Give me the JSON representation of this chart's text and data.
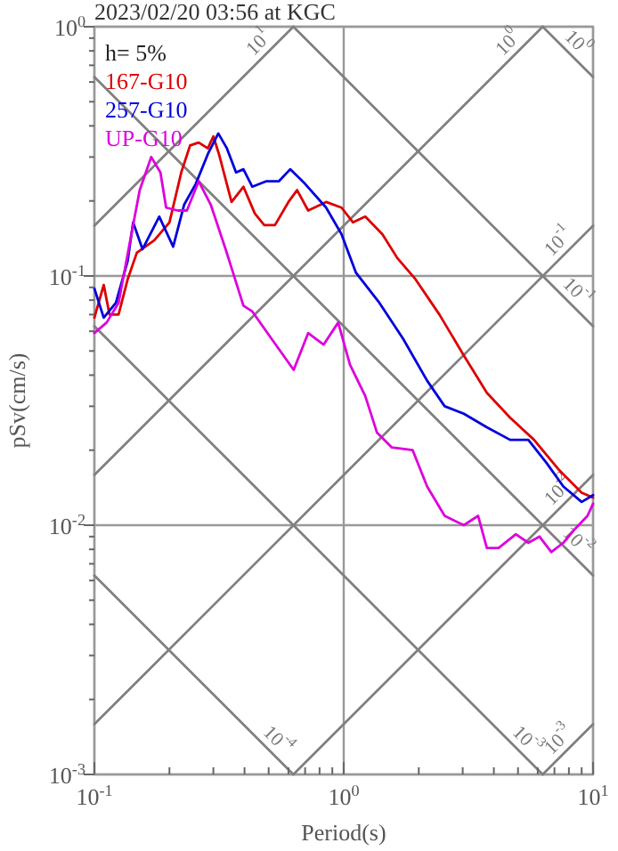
{
  "chart_data": {
    "type": "line",
    "title": "2023/02/20 03:56 at KGC",
    "xlabel": "Period(s)",
    "ylabel": "pSv(cm/s)",
    "log": "xy",
    "grid": true,
    "legend": "top left",
    "line_style": "solid",
    "marker": "none",
    "xlim": [
      0.1,
      10
    ],
    "ylim": [
      0.001,
      1
    ],
    "xticks": [
      {
        "value": 0.1,
        "label": "10$^{-1}$"
      },
      {
        "value": 0.2,
        "label": null
      },
      {
        "value": 0.3,
        "label": null
      },
      {
        "value": 0.4,
        "label": null
      },
      {
        "value": 0.5,
        "label": null
      },
      {
        "value": 0.6,
        "label": null
      },
      {
        "value": 0.7,
        "label": null
      },
      {
        "value": 0.8,
        "label": null
      },
      {
        "value": 0.9,
        "label": null
      },
      {
        "value": 1,
        "label": "10$^{0}$"
      },
      {
        "value": 2,
        "label": null
      },
      {
        "value": 3,
        "label": null
      },
      {
        "value": 4,
        "label": null
      },
      {
        "value": 5,
        "label": null
      },
      {
        "value": 6,
        "label": null
      },
      {
        "value": 7,
        "label": null
      },
      {
        "value": 8,
        "label": null
      },
      {
        "value": 9,
        "label": null
      },
      {
        "value": 10,
        "label": "10$^{1}$"
      }
    ],
    "yticks": [
      {
        "value": 0.001,
        "label": "10$^{-3}$"
      },
      {
        "value": 0.002,
        "label": null
      },
      {
        "value": 0.003,
        "label": null
      },
      {
        "value": 0.004,
        "label": null
      },
      {
        "value": 0.005,
        "label": null
      },
      {
        "value": 0.006,
        "label": null
      },
      {
        "value": 0.007,
        "label": null
      },
      {
        "value": 0.008,
        "label": null
      },
      {
        "value": 0.009,
        "label": null
      },
      {
        "value": 0.01,
        "label": "10$^{-2}$"
      },
      {
        "value": 0.02,
        "label": null
      },
      {
        "value": 0.03,
        "label": null
      },
      {
        "value": 0.04,
        "label": null
      },
      {
        "value": 0.05,
        "label": null
      },
      {
        "value": 0.06,
        "label": null
      },
      {
        "value": 0.07,
        "label": null
      },
      {
        "value": 0.08,
        "label": null
      },
      {
        "value": 0.09,
        "label": null
      },
      {
        "value": 0.1,
        "label": "10$^{-1}$"
      },
      {
        "value": 0.2,
        "label": null
      },
      {
        "value": 0.3,
        "label": null
      },
      {
        "value": 0.4,
        "label": null
      },
      {
        "value": 0.5,
        "label": null
      },
      {
        "value": 0.6,
        "label": null
      },
      {
        "value": 0.7,
        "label": null
      },
      {
        "value": 0.8,
        "label": null
      },
      {
        "value": 0.9,
        "label": null
      },
      {
        "value": 1,
        "label": "10$^{0}$"
      }
    ],
    "series": [
      {
        "type": "line",
        "name": "10$^{1}$",
        "color": "#808080",
        "x": [
          0.1,
          0.628
        ],
        "values": [
          0.159,
          1
        ]
      },
      {
        "type": "line",
        "name": "10$^{0}$",
        "color": "#808080",
        "x": [
          0.1,
          6.28
        ],
        "values": [
          0.0159,
          1
        ]
      },
      {
        "type": "line",
        "name": "10$^{-1}$",
        "color": "#808080",
        "x": [
          0.1,
          10
        ],
        "values": [
          0.00159,
          0.159
        ]
      },
      {
        "type": "line",
        "name": "10$^{-2}$",
        "color": "#808080",
        "x": [
          0.628,
          10
        ],
        "values": [
          0.001,
          0.0159
        ]
      },
      {
        "type": "line",
        "name": "10$^{-3}$",
        "color": "#808080",
        "x": [
          6.28,
          10
        ],
        "values": [
          0.001,
          0.00159
        ]
      },
      {
        "type": "line",
        "name": "10$^{0}$",
        "color": "#808080",
        "x": [
          6.28,
          10
        ],
        "values": [
          1,
          0.628
        ]
      },
      {
        "type": "line",
        "name": "10$^{-1}$",
        "color": "#808080",
        "x": [
          0.628,
          10
        ],
        "values": [
          1,
          0.0628
        ]
      },
      {
        "type": "line",
        "name": "10$^{-2}$",
        "color": "#808080",
        "x": [
          0.1,
          10
        ],
        "values": [
          0.628,
          0.00628
        ]
      },
      {
        "type": "line",
        "name": "10$^{-3}$",
        "color": "#808080",
        "x": [
          0.1,
          6.28
        ],
        "values": [
          0.0628,
          0.001
        ]
      },
      {
        "type": "line",
        "name": "10$^{-4}$",
        "color": "#808080",
        "x": [
          0.1,
          0.628
        ],
        "values": [
          0.00628,
          0.001
        ]
      },
      {
        "name": "167-G10",
        "color": "#dd0000",
        "x": [
          0.1,
          0.109,
          0.115,
          0.125,
          0.136,
          0.148,
          0.174,
          0.2,
          0.223,
          0.242,
          0.262,
          0.285,
          0.3,
          0.316,
          0.355,
          0.396,
          0.44,
          0.48,
          0.53,
          0.6,
          0.65,
          0.72,
          0.85,
          0.98,
          1.09,
          1.22,
          1.43,
          1.64,
          1.94,
          2.42,
          3.03,
          3.75,
          4.65,
          5.8,
          7.25,
          9.0,
          10
        ],
        "values": [
          0.068,
          0.092,
          0.07,
          0.07,
          0.097,
          0.124,
          0.139,
          0.164,
          0.26,
          0.334,
          0.343,
          0.325,
          0.363,
          0.308,
          0.198,
          0.228,
          0.178,
          0.16,
          0.16,
          0.198,
          0.221,
          0.183,
          0.198,
          0.188,
          0.164,
          0.173,
          0.147,
          0.118,
          0.097,
          0.07,
          0.048,
          0.034,
          0.027,
          0.022,
          0.0168,
          0.0135,
          0.0129
        ]
      },
      {
        "name": "257-G10",
        "color": "#0000dd",
        "x": [
          0.1,
          0.109,
          0.122,
          0.136,
          0.143,
          0.156,
          0.182,
          0.207,
          0.229,
          0.255,
          0.285,
          0.314,
          0.34,
          0.37,
          0.396,
          0.43,
          0.49,
          0.55,
          0.61,
          0.7,
          0.85,
          0.98,
          1.12,
          1.39,
          1.73,
          2.16,
          2.54,
          3.03,
          3.75,
          4.65,
          5.5,
          6.5,
          7.6,
          9.0,
          10
        ],
        "values": [
          0.089,
          0.068,
          0.078,
          0.115,
          0.164,
          0.128,
          0.173,
          0.131,
          0.193,
          0.234,
          0.308,
          0.373,
          0.325,
          0.26,
          0.268,
          0.228,
          0.24,
          0.24,
          0.268,
          0.234,
          0.188,
          0.147,
          0.103,
          0.078,
          0.056,
          0.038,
          0.03,
          0.028,
          0.0247,
          0.022,
          0.022,
          0.0178,
          0.0143,
          0.0124,
          0.0132
        ]
      },
      {
        "name": "UP-G10",
        "color": "#dd00dd",
        "x": [
          0.1,
          0.112,
          0.125,
          0.14,
          0.152,
          0.169,
          0.184,
          0.194,
          0.216,
          0.235,
          0.262,
          0.293,
          0.336,
          0.396,
          0.43,
          0.52,
          0.63,
          0.72,
          0.83,
          0.95,
          1.06,
          1.22,
          1.36,
          1.56,
          1.89,
          2.16,
          2.54,
          3.03,
          3.46,
          3.75,
          4.18,
          4.9,
          5.5,
          6.1,
          6.8,
          7.6,
          8.5,
          9.5,
          10
        ],
        "values": [
          0.059,
          0.065,
          0.078,
          0.143,
          0.221,
          0.3,
          0.26,
          0.188,
          0.183,
          0.183,
          0.24,
          0.193,
          0.128,
          0.076,
          0.072,
          0.055,
          0.042,
          0.059,
          0.053,
          0.065,
          0.044,
          0.033,
          0.0235,
          0.0205,
          0.02,
          0.0143,
          0.0109,
          0.01,
          0.0109,
          0.0081,
          0.0081,
          0.0092,
          0.0085,
          0.009,
          0.0078,
          0.0085,
          0.0097,
          0.0109,
          0.0122
        ]
      }
    ],
    "annotations": [
      "h= 5%"
    ]
  }
}
